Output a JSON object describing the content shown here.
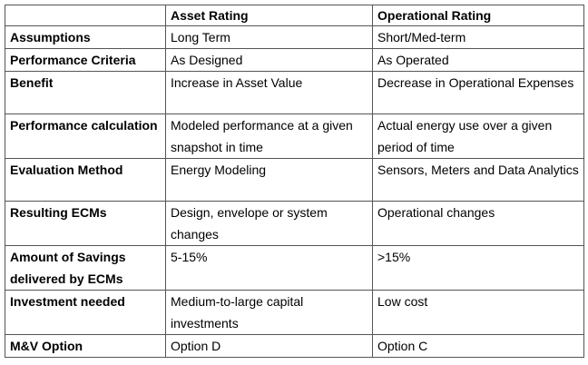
{
  "table": {
    "header": {
      "col0": "",
      "col1": "Asset Rating",
      "col2": "Operational Rating"
    },
    "rows": [
      {
        "label": "Assumptions",
        "asset": "Long Term",
        "operational": "Short/Med-term"
      },
      {
        "label": "Performance Criteria",
        "asset": "As Designed",
        "operational": "As Operated"
      },
      {
        "label": "Benefit",
        "asset": "Increase in Asset Value",
        "operational": "Decrease in Operational Expenses"
      },
      {
        "label": "Performance calculation",
        "asset": "Modeled performance at a given snapshot in time",
        "operational": "Actual energy use over a given period of time"
      },
      {
        "label": "Evaluation Method",
        "asset": "Energy Modeling",
        "operational": "Sensors, Meters and Data Analytics"
      },
      {
        "label": "Resulting ECMs",
        "asset": "Design, envelope or system changes",
        "operational": "Operational changes"
      },
      {
        "label": "Amount of Savings delivered by ECMs",
        "asset": "5-15%",
        "operational": ">15%"
      },
      {
        "label": "Investment needed",
        "asset": "Medium-to-large capital investments",
        "operational": "Low cost"
      },
      {
        "label": "M&V Option",
        "asset": "Option D",
        "operational": "Option C"
      }
    ]
  }
}
